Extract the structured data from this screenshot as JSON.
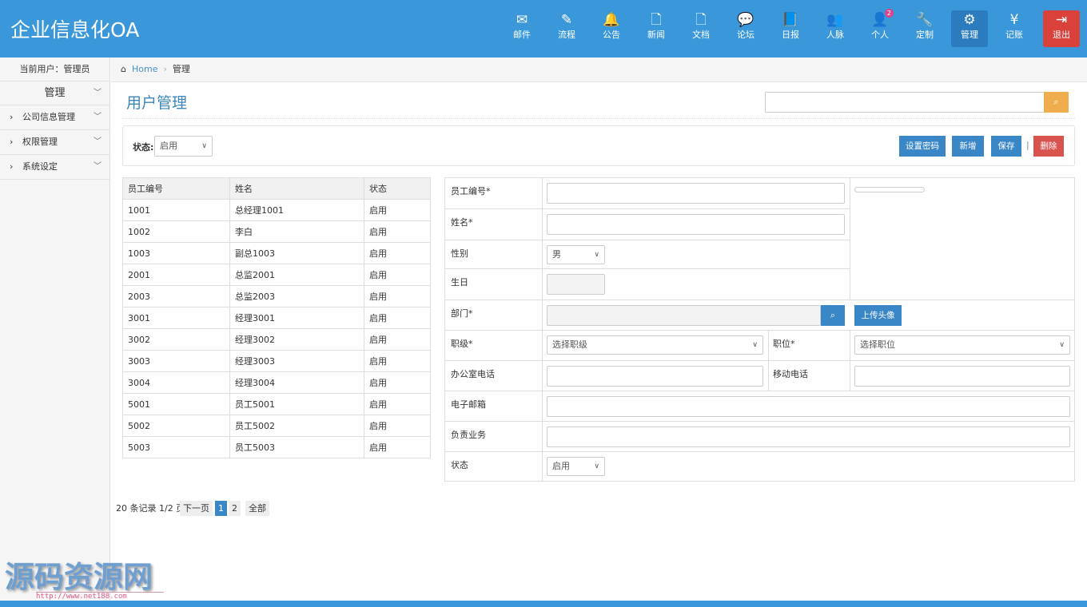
{
  "header": {
    "brand": "企业信息化OA",
    "nav": [
      {
        "label": "邮件",
        "icon": "envelope-icon",
        "glyph": "✉"
      },
      {
        "label": "流程",
        "icon": "pencil-icon",
        "glyph": "✎"
      },
      {
        "label": "公告",
        "icon": "bell-icon",
        "glyph": "🔔"
      },
      {
        "label": "新闻",
        "icon": "file-icon",
        "glyph": "🗋"
      },
      {
        "label": "文档",
        "icon": "file-icon",
        "glyph": "🗋"
      },
      {
        "label": "论坛",
        "icon": "comments-icon",
        "glyph": "💬"
      },
      {
        "label": "日报",
        "icon": "book-icon",
        "glyph": "📘"
      },
      {
        "label": "人脉",
        "icon": "users-icon",
        "glyph": "👥"
      },
      {
        "label": "个人",
        "icon": "user-icon",
        "glyph": "👤",
        "badge": "2"
      },
      {
        "label": "定制",
        "icon": "wrench-icon",
        "glyph": "🔧"
      },
      {
        "label": "管理",
        "icon": "gears-icon",
        "glyph": "⚙"
      },
      {
        "label": "记账",
        "icon": "yen-icon",
        "glyph": "¥"
      },
      {
        "label": "退出",
        "icon": "sign-out-icon",
        "glyph": "⇥"
      }
    ]
  },
  "sidebar": {
    "current_user": "当前用户：管理员",
    "section": "管理",
    "items": [
      "公司信息管理",
      "权限管理",
      "系统设定"
    ]
  },
  "breadcrumb": {
    "home": "Home",
    "current": "管理"
  },
  "page": {
    "title": "用户管理",
    "search_placeholder": ""
  },
  "toolbar": {
    "status_label": "状态:",
    "status_value": "启用",
    "buttons": {
      "set_password": "设置密码",
      "add": "新增",
      "save": "保存",
      "delete": "删除"
    },
    "separator": "|"
  },
  "table": {
    "columns": [
      "员工编号",
      "姓名",
      "状态"
    ],
    "rows": [
      [
        "1001",
        "总经理1001",
        "启用"
      ],
      [
        "1002",
        "李白",
        "启用"
      ],
      [
        "1003",
        "副总1003",
        "启用"
      ],
      [
        "2001",
        "总监2001",
        "启用"
      ],
      [
        "2003",
        "总监2003",
        "启用"
      ],
      [
        "3001",
        "经理3001",
        "启用"
      ],
      [
        "3002",
        "经理3002",
        "启用"
      ],
      [
        "3003",
        "经理3003",
        "启用"
      ],
      [
        "3004",
        "经理3004",
        "启用"
      ],
      [
        "5001",
        "员工5001",
        "启用"
      ],
      [
        "5002",
        "员工5002",
        "启用"
      ],
      [
        "5003",
        "员工5003",
        "启用"
      ]
    ]
  },
  "form": {
    "emp_no": "员工编号*",
    "name": "姓名*",
    "gender": "性别",
    "gender_value": "男",
    "birthday": "生日",
    "dept": "部门*",
    "upload": "上传头像",
    "grade": "职级*",
    "grade_placeholder": "选择职级",
    "position": "职位*",
    "position_placeholder": "选择职位",
    "office_phone": "办公室电话",
    "mobile": "移动电话",
    "email": "电子邮箱",
    "duty": "负责业务",
    "status": "状态",
    "status_value": "启用"
  },
  "pagination": {
    "summary": "20 条记录 1/2 页",
    "next": "下一页",
    "pages": [
      "1",
      "2"
    ],
    "current": "1",
    "all": "全部"
  },
  "watermark": {
    "text": "源码资源网",
    "url": "http://www.net188.com"
  },
  "colors": {
    "header": "#3a97d9",
    "primary": "#3a87c8",
    "danger": "#d9534f",
    "warning": "#f0ad4e"
  }
}
